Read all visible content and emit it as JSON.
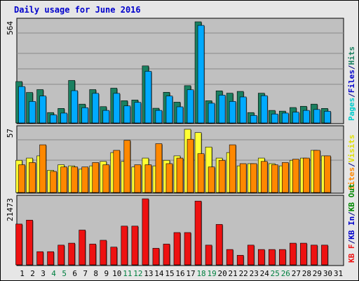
{
  "title": "Daily usage for June 2016",
  "colors": {
    "hits": "#1a8060",
    "files": "#00aaff",
    "pages": "#00cccc",
    "visits": "#ffff33",
    "sites": "#ff8800",
    "kb_in": "#0000ff",
    "kb_out": "#008800",
    "kbf": "#ee1111",
    "panel_bg": "#c0c0c0",
    "frame_bg": "#e6e6e6"
  },
  "chart_data": [
    {
      "type": "bar",
      "panel": "hits-files-pages",
      "ymax_label": "564",
      "ylim": [
        0,
        564
      ],
      "categories": [
        "1",
        "2",
        "3",
        "4",
        "5",
        "6",
        "7",
        "8",
        "9",
        "10",
        "11",
        "12",
        "13",
        "14",
        "15",
        "16",
        "17",
        "18",
        "19",
        "20",
        "21",
        "22",
        "23",
        "24",
        "25",
        "26",
        "27",
        "28",
        "29",
        "30",
        "31"
      ],
      "series": [
        {
          "name": "Hits",
          "values": [
            231,
            170,
            186,
            58,
            81,
            237,
            105,
            186,
            91,
            194,
            124,
            128,
            318,
            82,
            171,
            116,
            208,
            564,
            124,
            179,
            166,
            176,
            58,
            166,
            70,
            66,
            86,
            93,
            105,
            81,
            0
          ]
        },
        {
          "name": "Files",
          "values": [
            203,
            120,
            150,
            45,
            55,
            180,
            85,
            165,
            70,
            165,
            95,
            115,
            288,
            70,
            150,
            90,
            185,
            544,
            110,
            155,
            120,
            145,
            42,
            152,
            50,
            55,
            60,
            70,
            75,
            65,
            0
          ]
        },
        {
          "name": "Pages",
          "values": [
            0,
            0,
            0,
            0,
            0,
            0,
            0,
            0,
            0,
            0,
            0,
            0,
            0,
            0,
            0,
            0,
            0,
            0,
            0,
            0,
            0,
            0,
            0,
            0,
            0,
            0,
            0,
            0,
            0,
            0,
            0
          ]
        }
      ],
      "legend": [
        {
          "text": "Pages",
          "color": "#00cccc"
        },
        {
          "text": "/",
          "color": "#000080"
        },
        {
          "text": "Files",
          "color": "#0000cc"
        },
        {
          "text": "/",
          "color": "#000080"
        },
        {
          "text": "Hits",
          "color": "#1a8060"
        }
      ]
    },
    {
      "type": "bar",
      "panel": "visits-sites",
      "ymax_label": "57",
      "ylim": [
        0,
        57
      ],
      "categories": [
        "1",
        "2",
        "3",
        "4",
        "5",
        "6",
        "7",
        "8",
        "9",
        "10",
        "11",
        "12",
        "13",
        "14",
        "15",
        "16",
        "17",
        "18",
        "19",
        "20",
        "21",
        "22",
        "23",
        "24",
        "25",
        "26",
        "27",
        "28",
        "29",
        "30",
        "31"
      ],
      "series": [
        {
          "name": "Visits",
          "values": [
            29,
            31,
            33,
            20,
            25,
            24,
            21,
            24,
            28,
            36,
            28,
            23,
            31,
            24,
            29,
            33,
            57,
            54,
            41,
            31,
            36,
            24,
            26,
            31,
            26,
            24,
            29,
            31,
            38,
            33,
            0
          ]
        },
        {
          "name": "Sites",
          "values": [
            25,
            27,
            43,
            19,
            23,
            23,
            23,
            27,
            25,
            38,
            47,
            25,
            25,
            44,
            26,
            31,
            48,
            35,
            23,
            29,
            43,
            26,
            26,
            28,
            25,
            27,
            30,
            31,
            38,
            33,
            0
          ]
        }
      ],
      "legend": [
        {
          "text": "Sites",
          "color": "#ff8800"
        },
        {
          "text": "/",
          "color": "#000080"
        },
        {
          "text": "Visits",
          "color": "#e0e000"
        }
      ]
    },
    {
      "type": "bar",
      "panel": "kbf-kbin-kbout",
      "ymax_label": "21473",
      "ylim": [
        0,
        21473
      ],
      "categories": [
        "1",
        "2",
        "3",
        "4",
        "5",
        "6",
        "7",
        "8",
        "9",
        "10",
        "11",
        "12",
        "13",
        "14",
        "15",
        "16",
        "17",
        "18",
        "19",
        "20",
        "21",
        "22",
        "23",
        "24",
        "25",
        "26",
        "27",
        "28",
        "29",
        "30",
        "31"
      ],
      "series": [
        {
          "name": "KB F",
          "values": [
            13270,
            14550,
            4290,
            4290,
            6420,
            7060,
            11310,
            6760,
            8000,
            5770,
            12600,
            12600,
            21473,
            5390,
            6760,
            10510,
            10510,
            20740,
            6420,
            13150,
            5000,
            3110,
            6420,
            5000,
            5000,
            5000,
            7060,
            7060,
            6420,
            6420,
            0
          ]
        },
        {
          "name": "KB In",
          "values": [
            0,
            0,
            0,
            0,
            0,
            0,
            0,
            0,
            0,
            0,
            0,
            0,
            0,
            0,
            0,
            0,
            0,
            0,
            0,
            0,
            0,
            0,
            0,
            0,
            0,
            0,
            0,
            0,
            0,
            0,
            0
          ]
        },
        {
          "name": "KB Out",
          "values": [
            0,
            0,
            0,
            0,
            0,
            0,
            0,
            0,
            0,
            0,
            0,
            0,
            0,
            0,
            0,
            0,
            0,
            0,
            0,
            0,
            0,
            0,
            0,
            0,
            0,
            0,
            0,
            0,
            0,
            0,
            0
          ]
        }
      ],
      "legend": [
        {
          "text": "KB F",
          "color": "#ee1111"
        },
        {
          "text": "/",
          "color": "#000080"
        },
        {
          "text": "KB In",
          "color": "#0000cc"
        },
        {
          "text": "/",
          "color": "#000080"
        },
        {
          "text": "KB Out",
          "color": "#008800"
        }
      ]
    }
  ],
  "x_axis": {
    "labels": [
      "1",
      "2",
      "3",
      "4",
      "5",
      "6",
      "7",
      "8",
      "9",
      "10",
      "11",
      "12",
      "13",
      "14",
      "15",
      "16",
      "17",
      "18",
      "19",
      "20",
      "21",
      "22",
      "23",
      "24",
      "25",
      "26",
      "27",
      "28",
      "29",
      "30",
      "31"
    ],
    "weekend_days": [
      "4",
      "5",
      "11",
      "12",
      "18",
      "19",
      "25",
      "26"
    ],
    "weekday_color": "#000000",
    "weekend_color": "#008040"
  }
}
